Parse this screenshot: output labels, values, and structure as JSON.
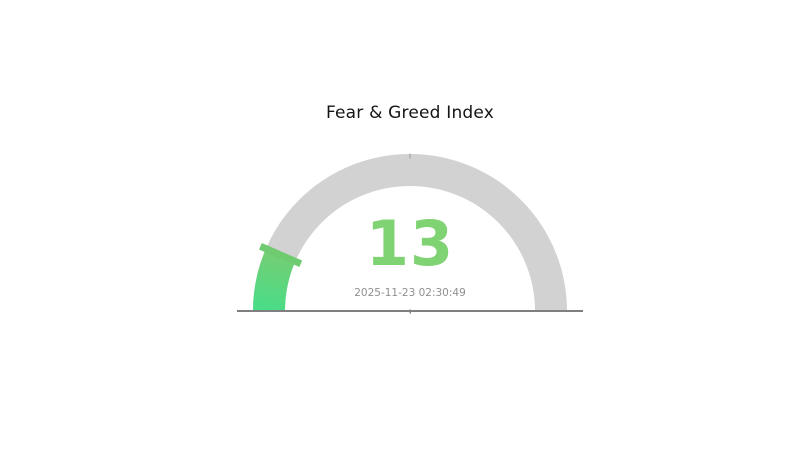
{
  "page": {
    "background": "#ffffff"
  },
  "chart_data": {
    "type": "gauge",
    "title": "Fear & Greed Index",
    "value": 13,
    "value_label": "13",
    "min": 0,
    "max": 100,
    "start_angle_deg": 180,
    "end_angle_deg": 0,
    "timestamp": "2025-11-23 02:30:49",
    "grid": false,
    "legend_position": "none",
    "colors": {
      "track": "#d2d2d2",
      "fill_gradient_base": "#49dd88",
      "fill_gradient_tip": "#74ce74",
      "tick_marker": "#6fcb6f",
      "value_text": "#80d372",
      "title_text": "#141414",
      "timestamp_text": "#8f8f8f",
      "baseline": "#7f7f7f",
      "minor_tick": "#9a9a9a"
    }
  }
}
